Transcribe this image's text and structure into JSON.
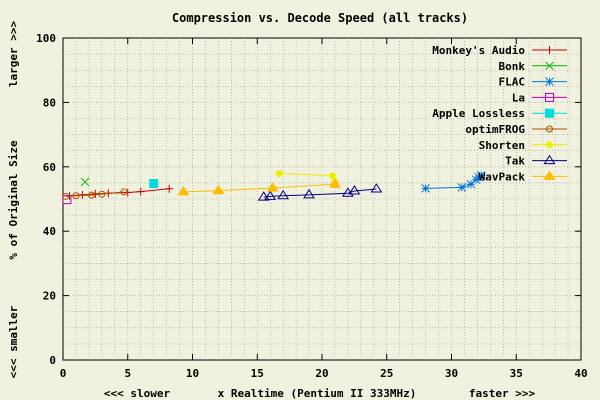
{
  "chart_data": {
    "type": "line",
    "title": "Compression vs. Decode Speed (all tracks)",
    "xlabel": "x Realtime (Pentium II 333MHz)",
    "xlabel_left": "<<< slower",
    "xlabel_right": "faster >>>",
    "ylabel": "% of Original Size",
    "ylabel_top": "larger >>>",
    "ylabel_bottom": "<<< smaller",
    "xlim": [
      0,
      40
    ],
    "ylim": [
      0,
      100
    ],
    "xticks": [
      0,
      5,
      10,
      15,
      20,
      25,
      30,
      35,
      40
    ],
    "yticks": [
      0,
      20,
      40,
      60,
      80,
      100
    ],
    "grid": true,
    "legend_position": "top-right",
    "series": [
      {
        "name": "Monkey's Audio",
        "color": "#cc0000",
        "marker": "plus",
        "x": [
          0.5,
          1.5,
          2.5,
          3.5,
          5.0,
          6.0,
          8.2
        ],
        "y": [
          51.0,
          51.3,
          51.6,
          51.8,
          52.0,
          52.3,
          53.2
        ]
      },
      {
        "name": "Bonk",
        "color": "#00bb00",
        "marker": "cross",
        "x": [
          1.7
        ],
        "y": [
          55.3
        ]
      },
      {
        "name": "FLAC",
        "color": "#0077dd",
        "marker": "star",
        "x": [
          28.0,
          30.8,
          31.5,
          31.9,
          32.1,
          32.3
        ],
        "y": [
          53.3,
          53.6,
          54.6,
          56.0,
          56.8,
          57.3
        ]
      },
      {
        "name": "La",
        "color": "#bb00bb",
        "marker": "square",
        "x": [
          0.3
        ],
        "y": [
          49.8
        ]
      },
      {
        "name": "Apple Lossless",
        "color": "#00dddd",
        "marker": "filled-square",
        "x": [
          7.0
        ],
        "y": [
          54.8
        ]
      },
      {
        "name": "optimFROG",
        "color": "#aa5500",
        "marker": "circle",
        "x": [
          0.2,
          1.0,
          2.2,
          3.0,
          4.7
        ],
        "y": [
          50.8,
          51.0,
          51.2,
          51.5,
          52.2
        ]
      },
      {
        "name": "Shorten",
        "color": "#eeee00",
        "marker": "filled-circle",
        "x": [
          16.7,
          20.8,
          21.0
        ],
        "y": [
          57.9,
          57.2,
          55.3
        ]
      },
      {
        "name": "Tak",
        "color": "#000088",
        "marker": "triangle",
        "x": [
          15.5,
          16.0,
          17.0,
          19.0,
          22.0,
          22.5,
          24.2
        ],
        "y": [
          50.6,
          50.8,
          51.0,
          51.3,
          51.8,
          52.5,
          53.1
        ]
      },
      {
        "name": "WavPack",
        "color": "#ffbb00",
        "marker": "filled-triangle",
        "x": [
          9.3,
          12.0,
          16.2,
          21.0
        ],
        "y": [
          52.2,
          52.6,
          53.4,
          54.6
        ]
      }
    ]
  }
}
